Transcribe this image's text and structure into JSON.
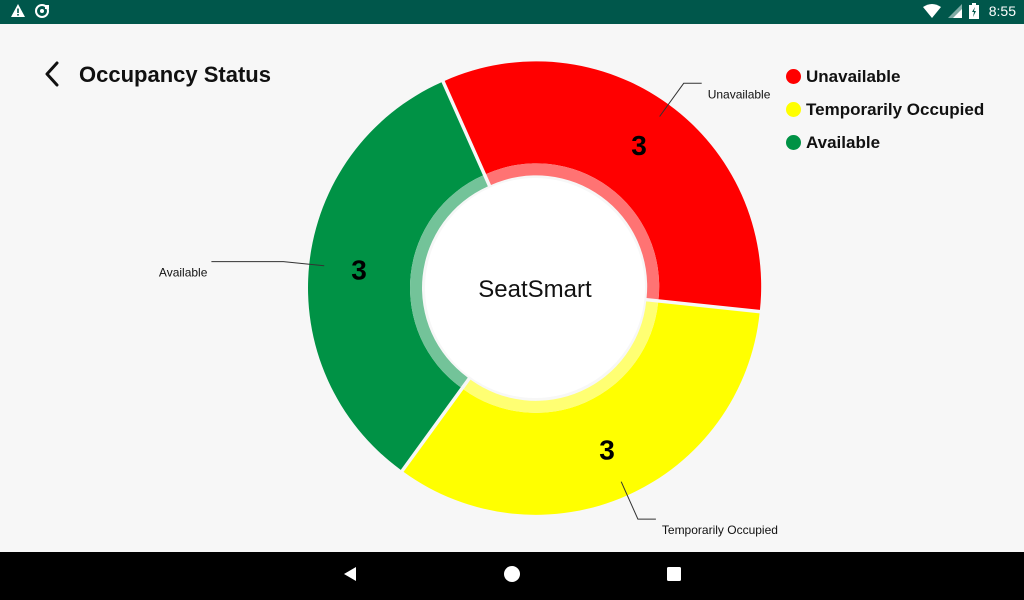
{
  "status_bar": {
    "time": "8:55",
    "icons": [
      "warning-icon",
      "media-icon",
      "wifi-icon",
      "signal-icon",
      "battery-charging-icon"
    ]
  },
  "header": {
    "title": "Occupancy Status",
    "back_icon": "chevron-left-icon"
  },
  "legend": {
    "items": [
      {
        "label": "Unavailable",
        "color": "#ff0000"
      },
      {
        "label": "Temporarily Occupied",
        "color": "#ffff00"
      },
      {
        "label": "Available",
        "color": "#009245"
      }
    ]
  },
  "chart_data": {
    "type": "pie",
    "center_text": "SeatSmart",
    "slices": [
      {
        "label": "Unavailable",
        "value": 3,
        "color": "#ff0000"
      },
      {
        "label": "Temporarily Occupied",
        "value": 3,
        "color": "#ffff00"
      },
      {
        "label": "Available",
        "value": 3,
        "color": "#009245"
      }
    ]
  },
  "nav_bar": {
    "buttons": [
      "back-triangle-icon",
      "home-circle-icon",
      "recents-square-icon"
    ]
  }
}
